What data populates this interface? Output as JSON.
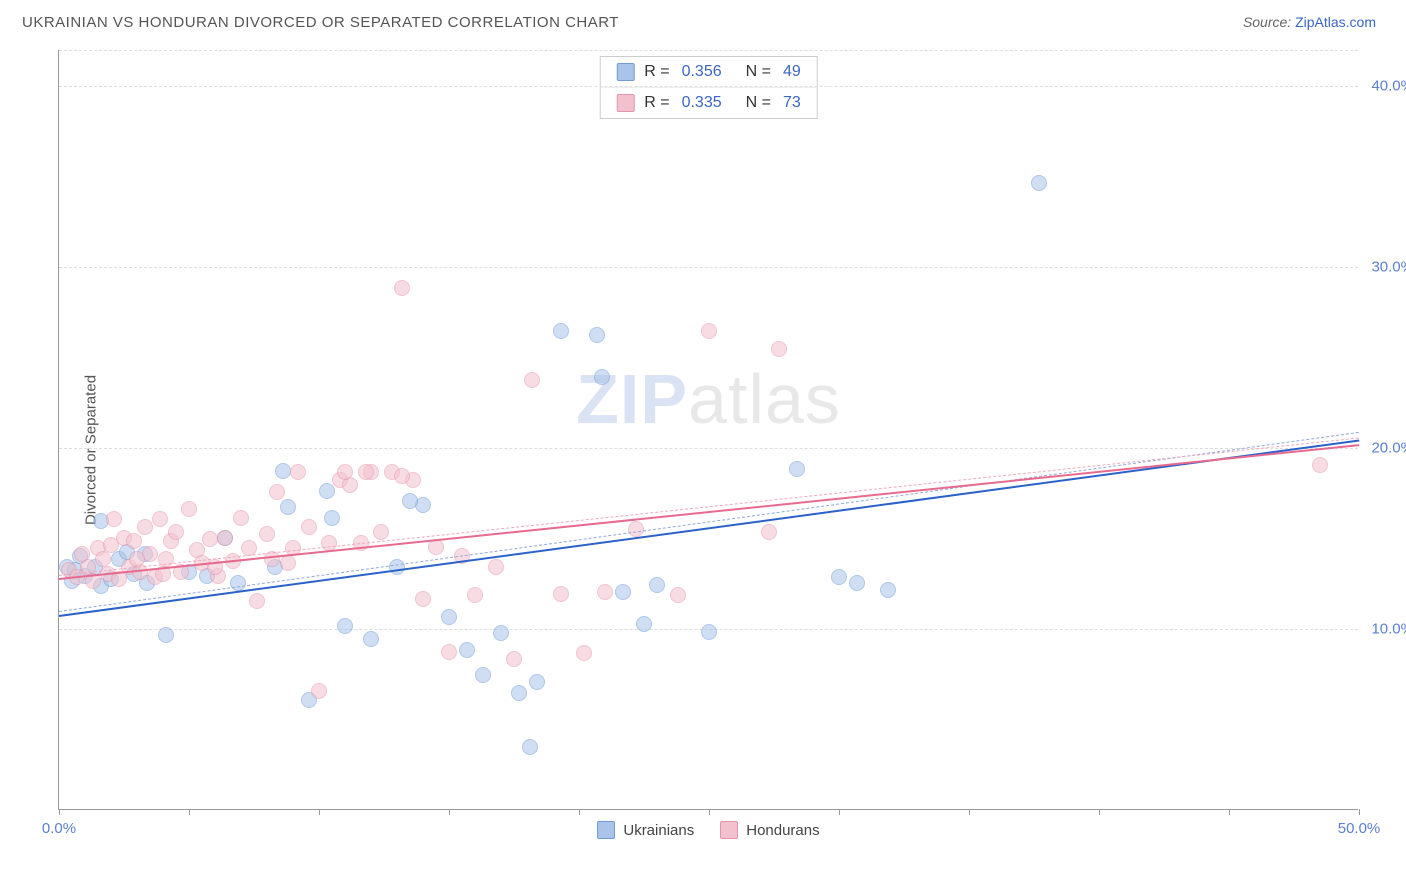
{
  "title": "UKRAINIAN VS HONDURAN DIVORCED OR SEPARATED CORRELATION CHART",
  "source_prefix": "Source: ",
  "source_link": "ZipAtlas.com",
  "ylabel": "Divorced or Separated",
  "watermark": {
    "bold": "ZIP",
    "light": "atlas"
  },
  "chart": {
    "type": "scatter",
    "xlim": [
      0,
      50
    ],
    "ylim": [
      0,
      42
    ],
    "y_ticks": [
      10,
      20,
      30,
      40
    ],
    "y_tick_labels": [
      "10.0%",
      "20.0%",
      "30.0%",
      "40.0%"
    ],
    "x_ticks": [
      0,
      5,
      10,
      15,
      20,
      25,
      30,
      35,
      40,
      45,
      50
    ],
    "x_tick_labels_shown": {
      "0": "0.0%",
      "50": "50.0%"
    },
    "background_color": "#ffffff",
    "grid_color": "#dddddd",
    "axis_color": "#999999",
    "point_radius": 8,
    "point_opacity": 0.55,
    "series": [
      {
        "name": "Ukrainians",
        "color_fill": "#a9c4e8",
        "color_stroke": "#6f9bd8",
        "r_value": "0.356",
        "n_value": "49",
        "trend": {
          "x1": 0,
          "y1": 10.8,
          "x2": 50,
          "y2": 20.5,
          "color": "#2a62c9",
          "dash_color": "#8fa9d8"
        },
        "points": [
          [
            0.3,
            13.4
          ],
          [
            0.5,
            12.6
          ],
          [
            0.6,
            13.2
          ],
          [
            0.8,
            14.0
          ],
          [
            1.0,
            12.9
          ],
          [
            1.4,
            13.4
          ],
          [
            1.6,
            15.9
          ],
          [
            1.6,
            12.3
          ],
          [
            2.0,
            12.7
          ],
          [
            2.3,
            13.8
          ],
          [
            2.6,
            14.2
          ],
          [
            2.9,
            13.0
          ],
          [
            3.3,
            14.1
          ],
          [
            3.4,
            12.5
          ],
          [
            4.1,
            9.6
          ],
          [
            5.0,
            13.1
          ],
          [
            5.7,
            12.9
          ],
          [
            6.4,
            15.0
          ],
          [
            6.9,
            12.5
          ],
          [
            8.3,
            13.4
          ],
          [
            8.6,
            18.7
          ],
          [
            8.8,
            16.7
          ],
          [
            9.6,
            6.0
          ],
          [
            10.3,
            17.6
          ],
          [
            10.5,
            16.1
          ],
          [
            11.0,
            10.1
          ],
          [
            12.0,
            9.4
          ],
          [
            13.0,
            13.4
          ],
          [
            14.0,
            16.8
          ],
          [
            15.7,
            8.8
          ],
          [
            16.3,
            7.4
          ],
          [
            17.0,
            9.7
          ],
          [
            17.7,
            6.4
          ],
          [
            19.3,
            26.4
          ],
          [
            20.7,
            26.2
          ],
          [
            20.9,
            23.9
          ],
          [
            18.1,
            3.4
          ],
          [
            18.4,
            7.0
          ],
          [
            22.5,
            10.2
          ],
          [
            23.0,
            12.4
          ],
          [
            25.0,
            9.8
          ],
          [
            28.4,
            18.8
          ],
          [
            30.7,
            12.5
          ],
          [
            31.9,
            12.1
          ],
          [
            30.0,
            12.8
          ],
          [
            37.7,
            34.6
          ],
          [
            21.7,
            12.0
          ],
          [
            15.0,
            10.6
          ],
          [
            13.5,
            17.0
          ]
        ]
      },
      {
        "name": "Hondurans",
        "color_fill": "#f3c1cd",
        "color_stroke": "#e494ab",
        "r_value": "0.335",
        "n_value": "73",
        "trend": {
          "x1": 0,
          "y1": 12.8,
          "x2": 50,
          "y2": 20.2,
          "color": "#e86a8e",
          "dash_color": "#f0a9bd"
        },
        "points": [
          [
            0.4,
            13.2
          ],
          [
            0.7,
            12.8
          ],
          [
            0.9,
            14.1
          ],
          [
            1.1,
            13.4
          ],
          [
            1.3,
            12.6
          ],
          [
            1.5,
            14.4
          ],
          [
            1.7,
            13.8
          ],
          [
            1.9,
            13.0
          ],
          [
            2.1,
            16.0
          ],
          [
            2.3,
            12.7
          ],
          [
            2.5,
            15.0
          ],
          [
            2.7,
            13.4
          ],
          [
            2.9,
            14.8
          ],
          [
            3.1,
            13.1
          ],
          [
            3.3,
            15.6
          ],
          [
            3.5,
            14.1
          ],
          [
            3.7,
            12.8
          ],
          [
            3.9,
            16.0
          ],
          [
            4.1,
            13.8
          ],
          [
            4.3,
            14.8
          ],
          [
            4.5,
            15.3
          ],
          [
            4.7,
            13.1
          ],
          [
            5.0,
            16.6
          ],
          [
            5.3,
            14.3
          ],
          [
            5.5,
            13.6
          ],
          [
            5.8,
            14.9
          ],
          [
            6.1,
            12.9
          ],
          [
            6.4,
            15.0
          ],
          [
            6.7,
            13.7
          ],
          [
            7.0,
            16.1
          ],
          [
            7.3,
            14.4
          ],
          [
            7.6,
            11.5
          ],
          [
            8.0,
            15.2
          ],
          [
            8.4,
            17.5
          ],
          [
            8.8,
            13.6
          ],
          [
            9.2,
            18.6
          ],
          [
            9.6,
            15.6
          ],
          [
            10.0,
            6.5
          ],
          [
            10.4,
            14.7
          ],
          [
            10.8,
            18.2
          ],
          [
            11.2,
            17.9
          ],
          [
            11.6,
            14.7
          ],
          [
            12.0,
            18.6
          ],
          [
            12.4,
            15.3
          ],
          [
            12.8,
            18.6
          ],
          [
            13.6,
            18.2
          ],
          [
            14.0,
            11.6
          ],
          [
            14.5,
            14.5
          ],
          [
            15.0,
            8.7
          ],
          [
            15.5,
            14.0
          ],
          [
            16.0,
            11.8
          ],
          [
            16.8,
            13.4
          ],
          [
            17.5,
            8.3
          ],
          [
            18.2,
            23.7
          ],
          [
            19.3,
            11.9
          ],
          [
            20.2,
            8.6
          ],
          [
            21.0,
            12.0
          ],
          [
            22.2,
            15.5
          ],
          [
            23.8,
            11.8
          ],
          [
            25.0,
            26.4
          ],
          [
            27.3,
            15.3
          ],
          [
            27.7,
            25.4
          ],
          [
            48.5,
            19.0
          ],
          [
            13.2,
            28.8
          ],
          [
            13.2,
            18.4
          ],
          [
            11.8,
            18.6
          ],
          [
            11.0,
            18.6
          ],
          [
            9.0,
            14.4
          ],
          [
            8.2,
            13.8
          ],
          [
            6.0,
            13.4
          ],
          [
            4.0,
            13.0
          ],
          [
            3.0,
            13.8
          ],
          [
            2.0,
            14.6
          ]
        ]
      }
    ]
  },
  "legend_bottom": [
    {
      "label": "Ukrainians",
      "fill": "#a9c4e8",
      "stroke": "#6f9bd8"
    },
    {
      "label": "Hondurans",
      "fill": "#f3c1cd",
      "stroke": "#e494ab"
    }
  ]
}
